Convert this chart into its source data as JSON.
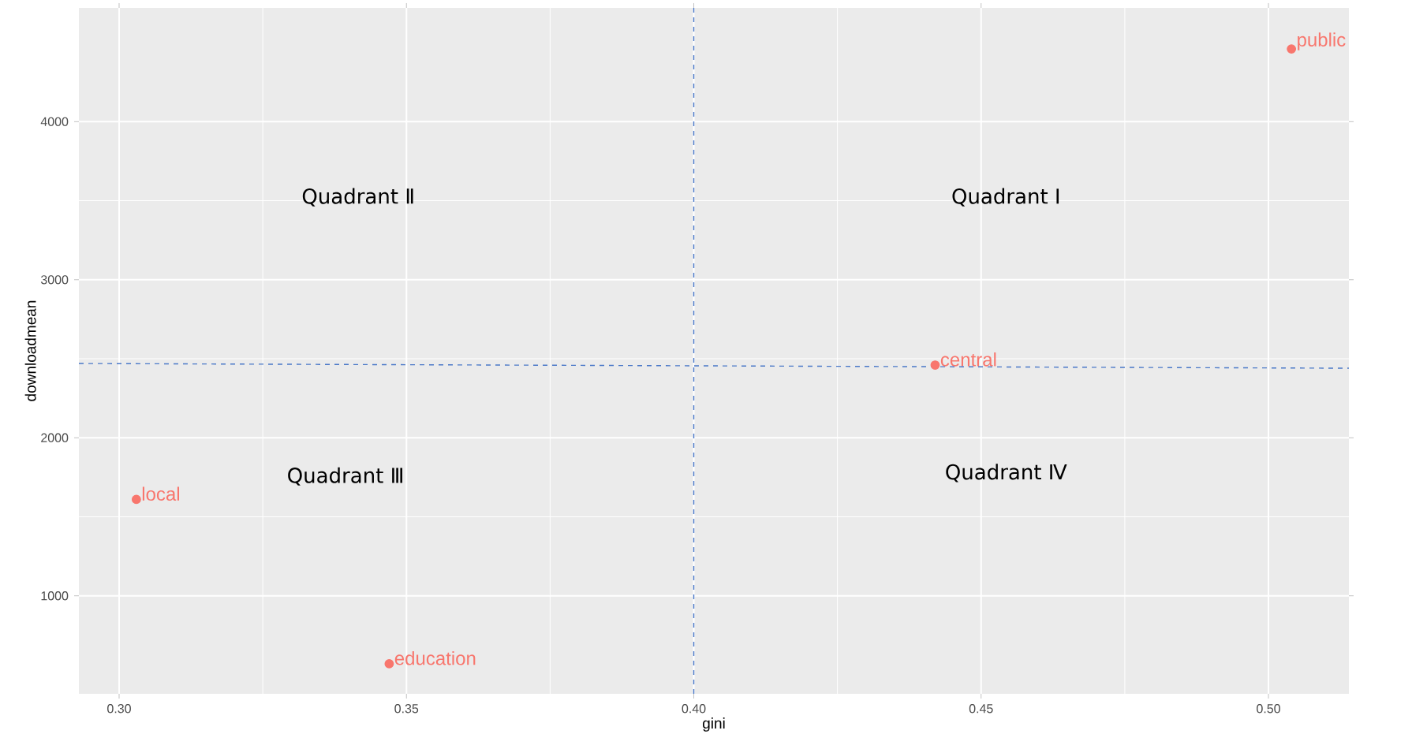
{
  "chart_data": {
    "type": "scatter",
    "xlabel": "gini",
    "ylabel": "downloadmean",
    "annotations": [
      "Quadrant Ⅰ",
      "Quadrant Ⅱ",
      "Quadrant Ⅲ",
      "Quadrant Ⅳ"
    ],
    "series": [
      {
        "name": "public",
        "color": "#f8766d",
        "marker": "circle",
        "x": [
          0.504
        ],
        "values": [
          4460
        ]
      },
      {
        "name": "central",
        "color": "#f8766d",
        "marker": "circle",
        "x": [
          0.442
        ],
        "values": [
          2460
        ]
      },
      {
        "name": "local",
        "color": "#f8766d",
        "marker": "circle",
        "x": [
          0.303
        ],
        "values": [
          1610
        ]
      },
      {
        "name": "education",
        "color": "#f8766d",
        "marker": "circle",
        "x": [
          0.347
        ],
        "values": [
          570
        ]
      },
      {
        "type": "line",
        "color": "#4a78c8",
        "line_style": "dashed",
        "marker": "none",
        "x": [
          0.293,
          0.514
        ],
        "values": [
          2470,
          2440
        ]
      }
    ],
    "ref_lines": [
      {
        "axis": "x",
        "value": 0.4,
        "color": "#4a78c8",
        "line_style": "dashed"
      }
    ],
    "xlim": [
      0.293,
      0.514
    ],
    "ylim": [
      380,
      4720
    ],
    "xticks": [
      {
        "value": 0.3,
        "label": "0.30"
      },
      {
        "value": 0.35,
        "label": "0.35"
      },
      {
        "value": 0.4,
        "label": "0.40"
      },
      {
        "value": 0.45,
        "label": "0.45"
      },
      {
        "value": 0.5,
        "label": "0.50"
      }
    ],
    "yticks": [
      1000,
      2000,
      3000,
      4000
    ],
    "grid": true
  }
}
